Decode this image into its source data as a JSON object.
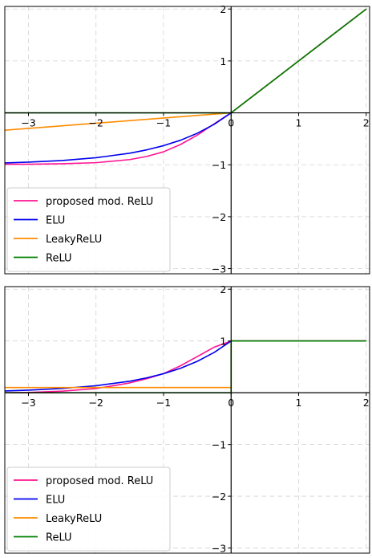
{
  "chart_data": [
    {
      "type": "line",
      "title": "",
      "xlabel": "",
      "ylabel": "",
      "xlim": [
        -3.35,
        2.05
      ],
      "ylim": [
        -3.1,
        2.05
      ],
      "xticks": [
        -3,
        -2,
        -1,
        0,
        1,
        2
      ],
      "yticks": [
        -3,
        -2,
        -1,
        0,
        1,
        2
      ],
      "xtick_labels": [
        "−3",
        "−2",
        "−1",
        "0",
        "1",
        "2"
      ],
      "ytick_labels": [
        "−3",
        "−2",
        "−1",
        "0",
        "1",
        "2"
      ],
      "grid": true,
      "legend_placement": "lower-left",
      "series": [
        {
          "name": "proposed mod. ReLU",
          "color": "#ff1493",
          "x": [
            -3.35,
            -3,
            -2.5,
            -2,
            -1.5,
            -1.25,
            -1,
            -0.75,
            -0.5,
            -0.25,
            0,
            0.5,
            1,
            1.5,
            2
          ],
          "y": [
            -0.99,
            -0.99,
            -0.98,
            -0.96,
            -0.9,
            -0.84,
            -0.75,
            -0.61,
            -0.43,
            -0.21,
            0,
            0.5,
            1,
            1.5,
            2
          ]
        },
        {
          "name": "ELU",
          "color": "#0000ee",
          "x": [
            -3.35,
            -3,
            -2.5,
            -2,
            -1.5,
            -1.25,
            -1,
            -0.75,
            -0.5,
            -0.25,
            0,
            0.5,
            1,
            1.5,
            2
          ],
          "y": [
            -0.965,
            -0.95,
            -0.918,
            -0.865,
            -0.777,
            -0.713,
            -0.632,
            -0.528,
            -0.393,
            -0.221,
            0,
            0.5,
            1,
            1.5,
            2
          ]
        },
        {
          "name": "LeakyReLU",
          "color": "#ff8c00",
          "x": [
            -3.35,
            0,
            2
          ],
          "y": [
            -0.335,
            0,
            2
          ]
        },
        {
          "name": "ReLU",
          "color": "#008000",
          "x": [
            -3.35,
            0,
            2
          ],
          "y": [
            0,
            0,
            2
          ]
        }
      ]
    },
    {
      "type": "line",
      "title": "",
      "xlabel": "",
      "ylabel": "",
      "xlim": [
        -3.35,
        2.05
      ],
      "ylim": [
        -3.1,
        2.05
      ],
      "xticks": [
        -3,
        -2,
        -1,
        0,
        1,
        2
      ],
      "yticks": [
        -3,
        -2,
        -1,
        0,
        1,
        2
      ],
      "xtick_labels": [
        "−3",
        "−2",
        "−1",
        "0",
        "1",
        "2"
      ],
      "ytick_labels": [
        "−3",
        "−2",
        "−1",
        "0",
        "1",
        "2"
      ],
      "grid": true,
      "legend_placement": "lower-left",
      "series": [
        {
          "name": "proposed mod. ReLU",
          "color": "#ff1493",
          "x": [
            -3.35,
            -3,
            -2.5,
            -2,
            -1.5,
            -1.25,
            -1,
            -0.75,
            -0.5,
            -0.25,
            0,
            0.5,
            1,
            1.5,
            2
          ],
          "y": [
            0.0,
            0.005,
            0.03,
            0.08,
            0.19,
            0.27,
            0.37,
            0.52,
            0.7,
            0.88,
            1,
            1,
            1,
            1,
            1
          ]
        },
        {
          "name": "ELU",
          "color": "#0000ee",
          "x": [
            -3.35,
            -3,
            -2.5,
            -2,
            -1.5,
            -1.25,
            -1,
            -0.75,
            -0.5,
            -0.25,
            0,
            0.5,
            1,
            1.5,
            2
          ],
          "y": [
            0.035,
            0.05,
            0.082,
            0.135,
            0.223,
            0.287,
            0.368,
            0.472,
            0.607,
            0.779,
            1,
            1,
            1,
            1,
            1
          ]
        },
        {
          "name": "LeakyReLU",
          "color": "#ff8c00",
          "x": [
            -3.35,
            0,
            0,
            2
          ],
          "y": [
            0.1,
            0.1,
            1,
            1
          ]
        },
        {
          "name": "ReLU",
          "color": "#008000",
          "x": [
            -3.35,
            0,
            0,
            2
          ],
          "y": [
            0,
            0,
            1,
            1
          ]
        }
      ]
    }
  ]
}
